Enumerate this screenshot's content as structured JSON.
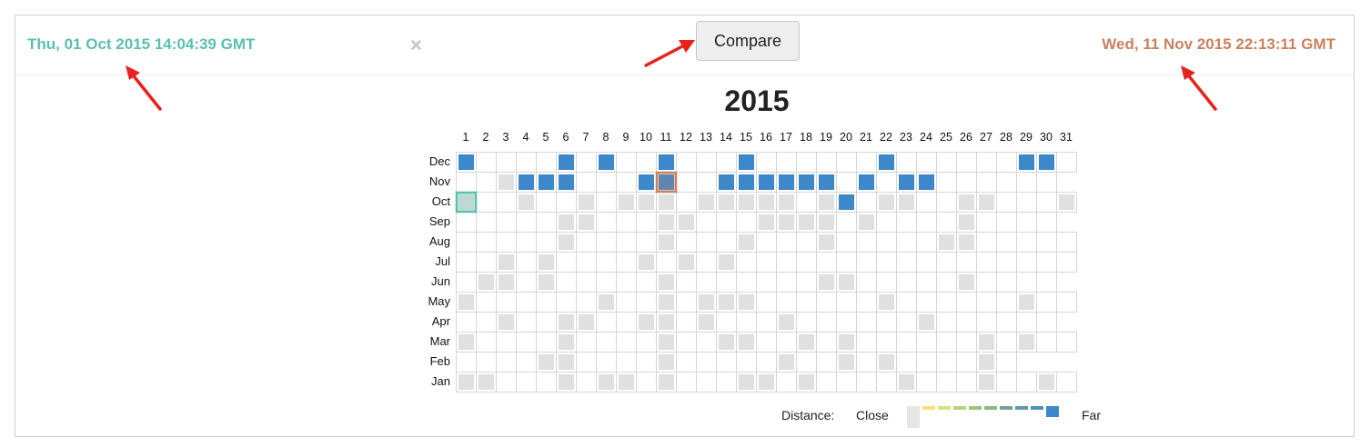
{
  "header": {
    "left_timestamp": "Thu, 01 Oct 2015 14:04:39 GMT",
    "right_timestamp": "Wed, 11 Nov 2015 22:13:11 GMT",
    "clear_symbol": "×",
    "compare_label": "Compare"
  },
  "calendar": {
    "year": "2015",
    "days": [
      "1",
      "2",
      "3",
      "4",
      "5",
      "6",
      "7",
      "8",
      "9",
      "10",
      "11",
      "12",
      "13",
      "14",
      "15",
      "16",
      "17",
      "18",
      "19",
      "20",
      "21",
      "22",
      "23",
      "24",
      "25",
      "26",
      "27",
      "28",
      "29",
      "30",
      "31"
    ],
    "months": [
      "Dec",
      "Nov",
      "Oct",
      "Sep",
      "Aug",
      "Jul",
      "Jun",
      "May",
      "Apr",
      "Mar",
      "Feb",
      "Jan"
    ],
    "month_lengths": [
      31,
      30,
      31,
      30,
      31,
      31,
      30,
      31,
      30,
      31,
      28,
      31
    ],
    "cells": {
      "Dec": {
        "blue": [
          1,
          6,
          8,
          11,
          15,
          22,
          29,
          30
        ],
        "gray": []
      },
      "Nov": {
        "blue": [
          4,
          5,
          6,
          10,
          11,
          14,
          15,
          16,
          17,
          18,
          19,
          21,
          23,
          24
        ],
        "gray": [
          3
        ]
      },
      "Oct": {
        "blue": [
          20
        ],
        "gray": [
          1,
          4,
          7,
          9,
          10,
          11,
          13,
          14,
          15,
          16,
          17,
          19,
          22,
          23,
          26,
          27,
          31
        ]
      },
      "Sep": {
        "blue": [],
        "gray": [
          6,
          7,
          11,
          12,
          16,
          17,
          18,
          19,
          21,
          26
        ]
      },
      "Aug": {
        "blue": [],
        "gray": [
          6,
          11,
          15,
          19,
          25,
          26
        ]
      },
      "Jul": {
        "blue": [],
        "gray": [
          3,
          5,
          10,
          12,
          14
        ]
      },
      "Jun": {
        "blue": [],
        "gray": [
          2,
          3,
          5,
          11,
          19,
          20,
          26
        ]
      },
      "May": {
        "blue": [],
        "gray": [
          1,
          8,
          11,
          13,
          14,
          15,
          22,
          29
        ]
      },
      "Apr": {
        "blue": [],
        "gray": [
          3,
          6,
          7,
          10,
          11,
          13,
          17,
          24
        ]
      },
      "Mar": {
        "blue": [],
        "gray": [
          1,
          6,
          11,
          14,
          15,
          18,
          20,
          27,
          29
        ]
      },
      "Feb": {
        "blue": [],
        "gray": [
          5,
          6,
          11,
          17,
          20,
          22,
          27
        ]
      },
      "Jan": {
        "blue": [],
        "gray": [
          1,
          2,
          6,
          8,
          9,
          11,
          15,
          16,
          18,
          23,
          27,
          30
        ]
      }
    },
    "selected_left": {
      "month": "Oct",
      "day": 1
    },
    "selected_right": {
      "month": "Nov",
      "day": 11
    }
  },
  "legend": {
    "label": "Distance:",
    "close_label": "Close",
    "far_label": "Far",
    "scale_colors": [
      "#e6e6e6",
      "#f2e27a",
      "#d9e27e",
      "#b8d37a",
      "#9cc57c",
      "#86b987",
      "#6ea58f",
      "#5e9ba6",
      "#4d91c0",
      "#3d87cb"
    ]
  },
  "colors": {
    "blue": "#3d87cb",
    "gray": "#e0e0e0",
    "teal": "#5dbfae",
    "orange": "#c9815f",
    "arrow": "#e8211c"
  }
}
